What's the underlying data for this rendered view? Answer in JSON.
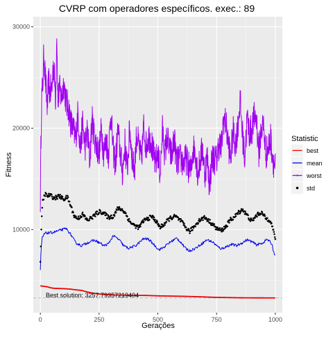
{
  "chart_data": {
    "type": "line",
    "title": "CVRP com operadores específicos. exec.: 89",
    "xlabel": "Gerações",
    "ylabel": "Fitness",
    "xlim": [
      -30,
      1030
    ],
    "ylim": [
      1800,
      31000
    ],
    "x_ticks": [
      0,
      250,
      500,
      750,
      1000
    ],
    "x_tick_labels": [
      "0",
      "250",
      "500",
      "750",
      "1000"
    ],
    "y_ticks": [
      10000,
      20000,
      30000
    ],
    "y_tick_labels": [
      "10000",
      "20000",
      "30000"
    ],
    "grid": true,
    "legend": {
      "title": "Statistic",
      "placement": "right",
      "entries": [
        {
          "label": "best",
          "color": "#ee0000",
          "style": "line"
        },
        {
          "label": "mean",
          "color": "#0000ee",
          "style": "line"
        },
        {
          "label": "worst",
          "color": "#a000f0",
          "style": "line"
        },
        {
          "label": "std",
          "color": "#000000",
          "style": "point"
        }
      ]
    },
    "annotation": {
      "text": "Best solution: 3257.79357219404",
      "x": 0,
      "y": 2900
    },
    "reference_line": {
      "y": 3257.79357219404,
      "style": "dashed",
      "color": "#bbbbbb"
    },
    "series": [
      {
        "name": "best",
        "color": "#ee0000",
        "points": [
          [
            0,
            4450
          ],
          [
            15,
            4400
          ],
          [
            30,
            4350
          ],
          [
            45,
            4250
          ],
          [
            60,
            4200
          ],
          [
            100,
            4170
          ],
          [
            130,
            4120
          ],
          [
            150,
            4060
          ],
          [
            175,
            4000
          ],
          [
            200,
            3840
          ],
          [
            230,
            3700
          ],
          [
            260,
            3620
          ],
          [
            300,
            3560
          ],
          [
            350,
            3530
          ],
          [
            400,
            3510
          ],
          [
            450,
            3500
          ],
          [
            500,
            3460
          ],
          [
            550,
            3440
          ],
          [
            600,
            3420
          ],
          [
            650,
            3390
          ],
          [
            700,
            3350
          ],
          [
            750,
            3310
          ],
          [
            800,
            3290
          ],
          [
            850,
            3270
          ],
          [
            900,
            3262
          ],
          [
            950,
            3259
          ],
          [
            1000,
            3258
          ]
        ]
      },
      {
        "name": "mean",
        "color": "#0000ee",
        "points": [
          [
            0,
            6000
          ],
          [
            3,
            8000
          ],
          [
            8,
            9200
          ],
          [
            20,
            9650
          ],
          [
            50,
            9700
          ],
          [
            80,
            9900
          ],
          [
            110,
            10100
          ],
          [
            130,
            9500
          ],
          [
            150,
            8700
          ],
          [
            175,
            8400
          ],
          [
            200,
            8700
          ],
          [
            230,
            8950
          ],
          [
            255,
            8650
          ],
          [
            270,
            8400
          ],
          [
            290,
            8600
          ],
          [
            310,
            9400
          ],
          [
            335,
            9000
          ],
          [
            355,
            8400
          ],
          [
            375,
            8150
          ],
          [
            405,
            8400
          ],
          [
            440,
            9100
          ],
          [
            460,
            9050
          ],
          [
            480,
            8600
          ],
          [
            505,
            8000
          ],
          [
            525,
            8250
          ],
          [
            555,
            8800
          ],
          [
            580,
            9150
          ],
          [
            600,
            8700
          ],
          [
            615,
            8200
          ],
          [
            635,
            7900
          ],
          [
            660,
            8150
          ],
          [
            690,
            8650
          ],
          [
            710,
            9000
          ],
          [
            735,
            8750
          ],
          [
            755,
            8300
          ],
          [
            770,
            8100
          ],
          [
            795,
            8350
          ],
          [
            815,
            8550
          ],
          [
            835,
            8400
          ],
          [
            860,
            8700
          ],
          [
            880,
            9000
          ],
          [
            900,
            8800
          ],
          [
            920,
            8500
          ],
          [
            945,
            8650
          ],
          [
            965,
            9050
          ],
          [
            985,
            8600
          ],
          [
            995,
            7650
          ],
          [
            1000,
            7400
          ]
        ]
      },
      {
        "name": "worst",
        "color": "#a000f0",
        "points": [
          [
            0,
            13000
          ],
          [
            2,
            17800
          ],
          [
            5,
            22800
          ],
          [
            10,
            24200
          ],
          [
            15,
            27300
          ],
          [
            20,
            25500
          ],
          [
            25,
            23500
          ],
          [
            30,
            22000
          ],
          [
            35,
            24800
          ],
          [
            40,
            23500
          ],
          [
            50,
            24000
          ],
          [
            55,
            26500
          ],
          [
            60,
            25000
          ],
          [
            65,
            23000
          ],
          [
            70,
            29700
          ],
          [
            75,
            22000
          ],
          [
            80,
            24000
          ],
          [
            90,
            23000
          ],
          [
            100,
            24500
          ],
          [
            110,
            22500
          ],
          [
            120,
            22000
          ],
          [
            130,
            20500
          ],
          [
            140,
            19800
          ],
          [
            150,
            19000
          ],
          [
            160,
            21500
          ],
          [
            170,
            17800
          ],
          [
            180,
            20500
          ],
          [
            190,
            18200
          ],
          [
            200,
            19700
          ],
          [
            210,
            16800
          ],
          [
            220,
            20800
          ],
          [
            230,
            19200
          ],
          [
            240,
            18200
          ],
          [
            250,
            17500
          ],
          [
            260,
            20000
          ],
          [
            270,
            17500
          ],
          [
            280,
            18800
          ],
          [
            290,
            17500
          ],
          [
            300,
            21600
          ],
          [
            310,
            17800
          ],
          [
            320,
            16500
          ],
          [
            330,
            19800
          ],
          [
            340,
            17600
          ],
          [
            350,
            15600
          ],
          [
            360,
            18500
          ],
          [
            370,
            15800
          ],
          [
            380,
            20000
          ],
          [
            390,
            17400
          ],
          [
            400,
            15700
          ],
          [
            410,
            19500
          ],
          [
            420,
            18000
          ],
          [
            430,
            16800
          ],
          [
            440,
            20200
          ],
          [
            450,
            18200
          ],
          [
            460,
            19200
          ],
          [
            470,
            19000
          ],
          [
            480,
            17500
          ],
          [
            490,
            16400
          ],
          [
            500,
            17500
          ],
          [
            510,
            15500
          ],
          [
            520,
            19800
          ],
          [
            530,
            17500
          ],
          [
            540,
            19200
          ],
          [
            550,
            17700
          ],
          [
            560,
            17300
          ],
          [
            570,
            19000
          ],
          [
            580,
            16500
          ],
          [
            590,
            17000
          ],
          [
            600,
            16900
          ],
          [
            610,
            16500
          ],
          [
            620,
            17000
          ],
          [
            630,
            16200
          ],
          [
            640,
            15700
          ],
          [
            650,
            18000
          ],
          [
            660,
            17800
          ],
          [
            670,
            15500
          ],
          [
            680,
            16800
          ],
          [
            690,
            18000
          ],
          [
            700,
            15500
          ],
          [
            710,
            17200
          ],
          [
            720,
            14300
          ],
          [
            730,
            17000
          ],
          [
            740,
            17000
          ],
          [
            750,
            16800
          ],
          [
            760,
            18500
          ],
          [
            770,
            18000
          ],
          [
            780,
            21000
          ],
          [
            790,
            20400
          ],
          [
            800,
            18500
          ],
          [
            810,
            17000
          ],
          [
            820,
            19700
          ],
          [
            830,
            18500
          ],
          [
            840,
            20000
          ],
          [
            850,
            22800
          ],
          [
            860,
            19500
          ],
          [
            870,
            17000
          ],
          [
            880,
            21000
          ],
          [
            890,
            19500
          ],
          [
            900,
            19900
          ],
          [
            910,
            21000
          ],
          [
            920,
            21000
          ],
          [
            930,
            17500
          ],
          [
            940,
            20000
          ],
          [
            950,
            20200
          ],
          [
            960,
            17500
          ],
          [
            970,
            18000
          ],
          [
            980,
            19000
          ],
          [
            990,
            17000
          ],
          [
            1000,
            16100
          ]
        ]
      },
      {
        "name": "std",
        "color": "#000000",
        "points": [
          [
            0,
            7000
          ],
          [
            5,
            10700
          ],
          [
            10,
            12800
          ],
          [
            20,
            13500
          ],
          [
            30,
            13300
          ],
          [
            40,
            13400
          ],
          [
            60,
            13100
          ],
          [
            80,
            13300
          ],
          [
            100,
            13000
          ],
          [
            115,
            13200
          ],
          [
            130,
            12300
          ],
          [
            145,
            11300
          ],
          [
            160,
            11100
          ],
          [
            180,
            11500
          ],
          [
            200,
            10900
          ],
          [
            220,
            11200
          ],
          [
            240,
            11600
          ],
          [
            255,
            11800
          ],
          [
            270,
            11600
          ],
          [
            290,
            11200
          ],
          [
            310,
            11300
          ],
          [
            330,
            12100
          ],
          [
            345,
            12000
          ],
          [
            360,
            11700
          ],
          [
            380,
            10800
          ],
          [
            400,
            10400
          ],
          [
            420,
            10200
          ],
          [
            440,
            10900
          ],
          [
            460,
            11100
          ],
          [
            475,
            11300
          ],
          [
            490,
            10900
          ],
          [
            510,
            10200
          ],
          [
            530,
            10600
          ],
          [
            550,
            11100
          ],
          [
            575,
            11300
          ],
          [
            600,
            10800
          ],
          [
            615,
            10300
          ],
          [
            635,
            9800
          ],
          [
            655,
            10300
          ],
          [
            675,
            10900
          ],
          [
            700,
            11200
          ],
          [
            715,
            10900
          ],
          [
            730,
            10600
          ],
          [
            750,
            10100
          ],
          [
            770,
            9900
          ],
          [
            790,
            10300
          ],
          [
            810,
            11000
          ],
          [
            825,
            11200
          ],
          [
            840,
            11600
          ],
          [
            860,
            12000
          ],
          [
            880,
            11400
          ],
          [
            900,
            10800
          ],
          [
            920,
            11400
          ],
          [
            940,
            11700
          ],
          [
            960,
            11100
          ],
          [
            980,
            10900
          ],
          [
            990,
            10000
          ],
          [
            1000,
            9200
          ]
        ]
      }
    ]
  }
}
